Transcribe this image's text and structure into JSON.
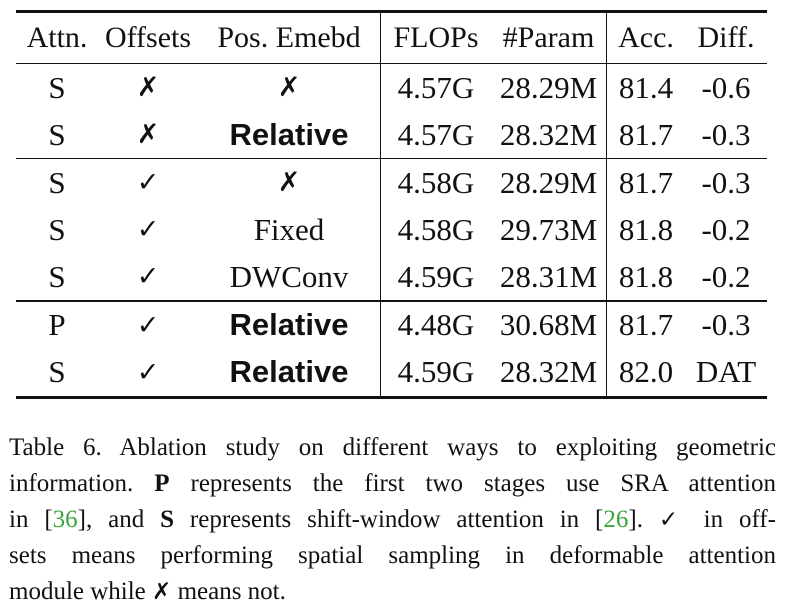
{
  "table": {
    "headers": [
      "Attn.",
      "Offsets",
      "Pos. Emebd",
      "FLOPs",
      "#Param",
      "Acc.",
      "Diff."
    ],
    "groups": [
      [
        {
          "attn": "S",
          "offsets": "✗",
          "pos": "✗",
          "pos_bold": false,
          "flops": "4.57G",
          "param": "28.29M",
          "acc": "81.4",
          "diff": "-0.6"
        },
        {
          "attn": "S",
          "offsets": "✗",
          "pos": "Relative",
          "pos_bold": true,
          "flops": "4.57G",
          "param": "28.32M",
          "acc": "81.7",
          "diff": "-0.3"
        }
      ],
      [
        {
          "attn": "S",
          "offsets": "✓",
          "pos": "✗",
          "pos_bold": false,
          "flops": "4.58G",
          "param": "28.29M",
          "acc": "81.7",
          "diff": "-0.3"
        },
        {
          "attn": "S",
          "offsets": "✓",
          "pos": "Fixed",
          "pos_bold": false,
          "flops": "4.58G",
          "param": "29.73M",
          "acc": "81.8",
          "diff": "-0.2"
        },
        {
          "attn": "S",
          "offsets": "✓",
          "pos": "DWConv",
          "pos_bold": false,
          "flops": "4.59G",
          "param": "28.31M",
          "acc": "81.8",
          "diff": "-0.2"
        }
      ],
      [
        {
          "attn": "P",
          "offsets": "✓",
          "pos": "Relative",
          "pos_bold": true,
          "flops": "4.48G",
          "param": "30.68M",
          "acc": "81.7",
          "diff": "-0.3"
        },
        {
          "attn": "S",
          "offsets": "✓",
          "pos": "Relative",
          "pos_bold": true,
          "flops": "4.59G",
          "param": "28.32M",
          "acc": "82.0",
          "diff": "DAT"
        }
      ]
    ]
  },
  "caption": {
    "line1": "Table 6. Ablation study on different ways to exploiting geometric",
    "line2_a": "information. ",
    "line2_b": "P",
    "line2_c": " represents the first two stages use SRA attention",
    "line3_a": "in [",
    "line3_ref1": "36",
    "line3_b": "], and ",
    "line3_s": "S",
    "line3_c": " represents shift-window attention in [",
    "line3_ref2": "26",
    "line3_d": "]. ",
    "line3_check": "✓",
    "line3_e": " in off-",
    "line4": "sets means performing spatial sampling in deformable attention",
    "line5_a": "module while ",
    "line5_cross": "✗",
    "line5_b": " means not."
  },
  "colors": {
    "ref_link": "#3aa33a",
    "text": "#111111"
  }
}
